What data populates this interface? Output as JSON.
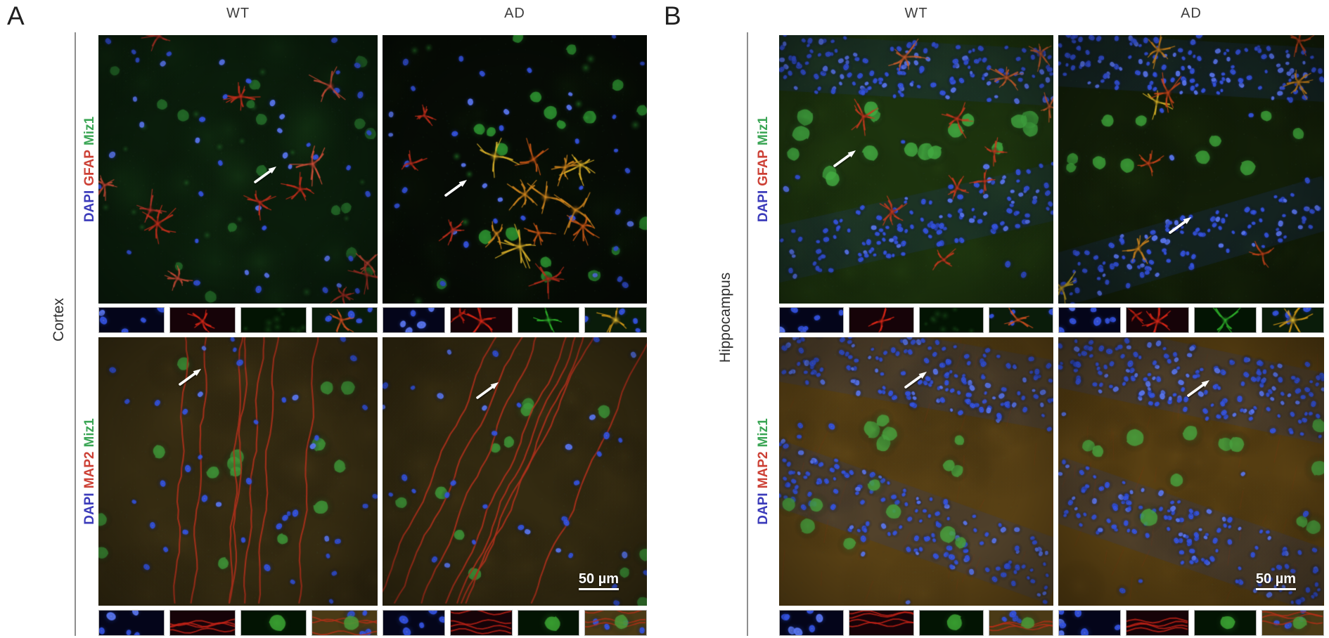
{
  "figure": {
    "type": "immunofluorescence-micrograph-figure",
    "scale_bar_label": "50 µm",
    "channel_legend": {
      "DAPI": "#3b3bba",
      "GFAP": "#cc4035",
      "MAP2": "#cc4035",
      "Miz1": "#3aa554"
    },
    "panels": [
      {
        "label": "A",
        "region": "Cortex",
        "columns": [
          "WT",
          "AD"
        ],
        "rows": [
          {
            "stain": [
              {
                "text": "DAPI",
                "color": "#3b3bba"
              },
              {
                "text": "GFAP",
                "color": "#cc4035"
              },
              {
                "text": "Miz1",
                "color": "#3aa554"
              }
            ],
            "inset_channels": [
              "DAPI",
              "GFAP",
              "Miz1",
              "Merge"
            ],
            "images": [
              {
                "condition": "WT",
                "type": "cortex_gfap_wt",
                "seed": 11,
                "arrow": {
                  "x": 0.6,
                  "y": 0.52
                }
              },
              {
                "condition": "AD",
                "type": "cortex_gfap_ad",
                "seed": 23,
                "arrow": {
                  "x": 0.28,
                  "y": 0.57
                }
              }
            ]
          },
          {
            "stain": [
              {
                "text": "DAPI",
                "color": "#3b3bba"
              },
              {
                "text": "MAP2",
                "color": "#cc4035"
              },
              {
                "text": "Miz1",
                "color": "#3aa554"
              }
            ],
            "inset_channels": [
              "DAPI",
              "MAP2",
              "Miz1",
              "Merge"
            ],
            "images": [
              {
                "condition": "WT",
                "type": "cortex_map2_wt",
                "seed": 37,
                "arrow": {
                  "x": 0.33,
                  "y": 0.15
                }
              },
              {
                "condition": "AD",
                "type": "cortex_map2_ad",
                "seed": 41,
                "arrow": {
                  "x": 0.4,
                  "y": 0.2
                },
                "scalebar": "50 µm"
              }
            ]
          }
        ]
      },
      {
        "label": "B",
        "region": "Hippocampus",
        "columns": [
          "WT",
          "AD"
        ],
        "rows": [
          {
            "stain": [
              {
                "text": "DAPI",
                "color": "#3b3bba"
              },
              {
                "text": "GFAP",
                "color": "#cc4035"
              },
              {
                "text": "Miz1",
                "color": "#3aa554"
              }
            ],
            "inset_channels": [
              "DAPI",
              "GFAP",
              "Miz1",
              "Merge"
            ],
            "images": [
              {
                "condition": "WT",
                "type": "hippo_gfap_wt",
                "seed": 53,
                "arrow": {
                  "x": 0.24,
                  "y": 0.46
                }
              },
              {
                "condition": "AD",
                "type": "hippo_gfap_ad",
                "seed": 67,
                "arrow": {
                  "x": 0.46,
                  "y": 0.71
                }
              }
            ]
          },
          {
            "stain": [
              {
                "text": "DAPI",
                "color": "#3b3bba"
              },
              {
                "text": "MAP2",
                "color": "#cc4035"
              },
              {
                "text": "Miz1",
                "color": "#3aa554"
              }
            ],
            "inset_channels": [
              "DAPI",
              "MAP2",
              "Miz1",
              "Merge"
            ],
            "images": [
              {
                "condition": "WT",
                "type": "hippo_map2_wt",
                "seed": 71,
                "arrow": {
                  "x": 0.5,
                  "y": 0.16
                }
              },
              {
                "condition": "AD",
                "type": "hippo_map2_ad",
                "seed": 83,
                "arrow": {
                  "x": 0.53,
                  "y": 0.19
                },
                "scalebar": "50 µm"
              }
            ]
          }
        ]
      }
    ]
  }
}
